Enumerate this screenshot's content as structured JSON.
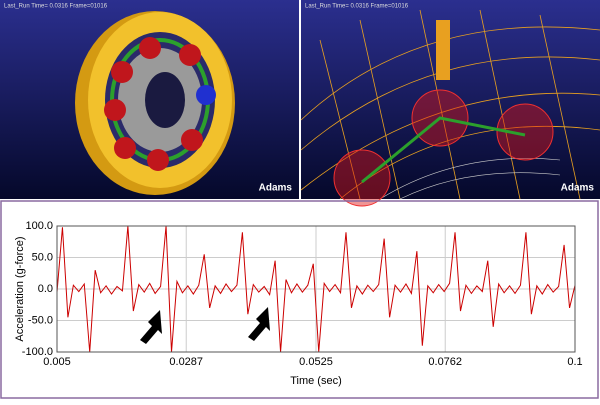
{
  "panels": [
    {
      "status": "Last_Run   Time= 0.0316  Frame=01016",
      "logo": "Adams"
    },
    {
      "status": "Last_Run   Time= 0.0316  Frame=01016",
      "logo": "Adams"
    }
  ],
  "chart_data": {
    "type": "line",
    "ylabel": "Acceleration (g-force)",
    "xlabel": "Time (sec)",
    "color": "#cc0000",
    "grid": true,
    "xlim": [
      0.005,
      0.1
    ],
    "xticks": [
      0.005,
      0.0287,
      0.0525,
      0.0762,
      0.1
    ],
    "ylim": [
      -100,
      100
    ],
    "yticks": [
      {
        "value": 100,
        "label": "100.0"
      },
      {
        "value": 50,
        "label": "50.0"
      },
      {
        "value": 0,
        "label": "0.0"
      },
      {
        "value": -50,
        "label": "-50.0"
      },
      {
        "value": -100,
        "label": "-100.0"
      }
    ],
    "x": [
      0.005,
      0.006,
      0.007,
      0.008,
      0.009,
      0.01,
      0.011,
      0.012,
      0.013,
      0.014,
      0.015,
      0.016,
      0.017,
      0.018,
      0.019,
      0.02,
      0.021,
      0.022,
      0.023,
      0.024,
      0.025,
      0.026,
      0.027,
      0.028,
      0.029,
      0.03,
      0.031,
      0.032,
      0.033,
      0.034,
      0.035,
      0.036,
      0.037,
      0.038,
      0.039,
      0.04,
      0.041,
      0.042,
      0.043,
      0.044,
      0.045,
      0.046,
      0.047,
      0.048,
      0.049,
      0.05,
      0.051,
      0.052,
      0.053,
      0.054,
      0.055,
      0.056,
      0.057,
      0.058,
      0.059,
      0.06,
      0.061,
      0.062,
      0.063,
      0.064,
      0.065,
      0.066,
      0.067,
      0.068,
      0.069,
      0.07,
      0.071,
      0.072,
      0.073,
      0.074,
      0.075,
      0.076,
      0.077,
      0.078,
      0.079,
      0.08,
      0.081,
      0.082,
      0.083,
      0.084,
      0.085,
      0.086,
      0.087,
      0.088,
      0.089,
      0.09,
      0.091,
      0.092,
      0.093,
      0.094,
      0.095,
      0.096,
      0.097,
      0.098,
      0.099,
      0.1
    ],
    "values": [
      -5,
      98,
      -45,
      6,
      -4,
      8,
      -100,
      30,
      -6,
      5,
      -8,
      4,
      -3,
      100,
      -35,
      7,
      -5,
      9,
      -7,
      4,
      100,
      -100,
      12,
      -6,
      5,
      -8,
      6,
      55,
      -30,
      5,
      -7,
      8,
      -4,
      6,
      90,
      -40,
      7,
      -5,
      4,
      -9,
      45,
      -100,
      15,
      -6,
      8,
      -5,
      6,
      40,
      -100,
      9,
      -4,
      7,
      -6,
      90,
      -30,
      5,
      -8,
      6,
      -4,
      7,
      80,
      -45,
      6,
      -5,
      8,
      -7,
      60,
      -90,
      5,
      -6,
      7,
      -4,
      9,
      90,
      -35,
      6,
      -7,
      5,
      -4,
      45,
      -60,
      8,
      -6,
      5,
      -7,
      6,
      90,
      -40,
      5,
      -8,
      7,
      -5,
      4,
      70,
      -30,
      6
    ]
  }
}
